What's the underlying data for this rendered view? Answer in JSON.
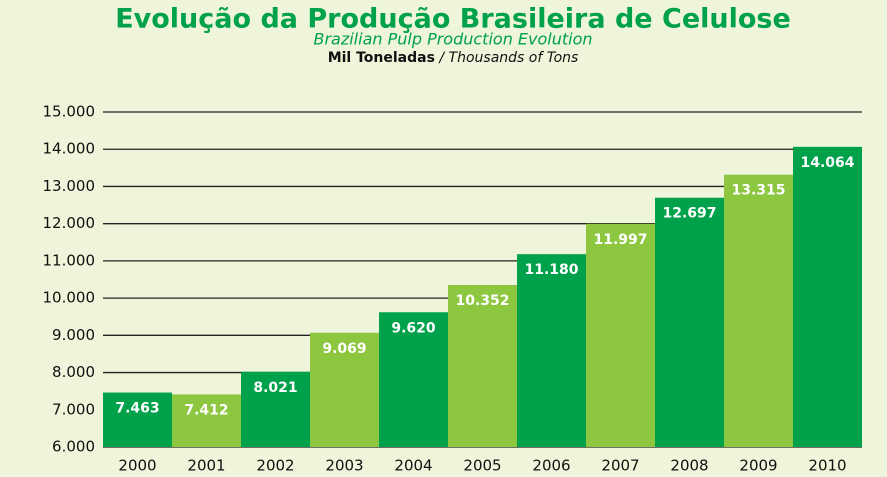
{
  "chart_data": {
    "type": "bar",
    "title": "Evolução da Produção Brasileira de Celulose",
    "subtitle": "Brazilian Pulp Production Evolution",
    "unit_label": "Mil Toneladas",
    "unit_label_en": "/ Thousands of Tons",
    "categories": [
      "2000",
      "2001",
      "2002",
      "2003",
      "2004",
      "2005",
      "2006",
      "2007",
      "2008",
      "2009",
      "2010"
    ],
    "values": [
      7463,
      7412,
      8021,
      9069,
      9620,
      10352,
      11180,
      11997,
      12697,
      13315,
      14064
    ],
    "value_labels": [
      "7.463",
      "7.412",
      "8.021",
      "9.069",
      "9.620",
      "10.352",
      "11.180",
      "11.997",
      "12.697",
      "13.315",
      "14.064"
    ],
    "colors": [
      "#00a14b",
      "#8dc63f",
      "#00a14b",
      "#8dc63f",
      "#00a14b",
      "#8dc63f",
      "#00a14b",
      "#8dc63f",
      "#00a14b",
      "#8dc63f",
      "#00a14b"
    ],
    "ylim": [
      6000,
      15000
    ],
    "yticks": [
      {
        "value": 6000,
        "label": "6.000"
      },
      {
        "value": 7000,
        "label": "7.000"
      },
      {
        "value": 8000,
        "label": "8.000"
      },
      {
        "value": 9000,
        "label": "9.000"
      },
      {
        "value": 10000,
        "label": "10.000"
      },
      {
        "value": 11000,
        "label": "11.000"
      },
      {
        "value": 12000,
        "label": "12.000"
      },
      {
        "value": 13000,
        "label": "13.000"
      },
      {
        "value": 14000,
        "label": "14.000"
      },
      {
        "value": 15000,
        "label": "15.000"
      }
    ],
    "grid": true
  }
}
